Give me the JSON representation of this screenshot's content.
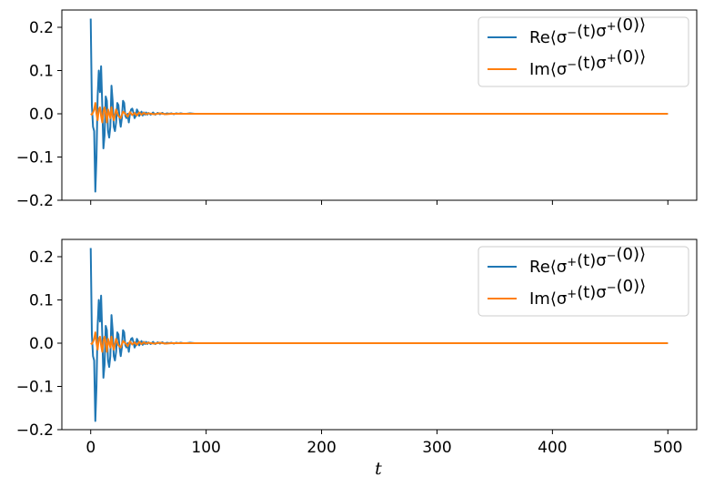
{
  "chart_data": [
    {
      "type": "line",
      "xlabel": "",
      "ylabel": "",
      "xlim": [
        -25,
        525
      ],
      "ylim": [
        -0.2,
        0.24
      ],
      "xticks": [
        0,
        100,
        200,
        300,
        400,
        500
      ],
      "yticks": [
        -0.2,
        -0.1,
        0.0,
        0.1,
        0.2
      ],
      "ytick_labels": [
        "−0.2",
        "−0.1",
        "0.0",
        "0.1",
        "0.2"
      ],
      "show_xtick_labels": false,
      "legend_position": "top-right",
      "series": [
        {
          "name": "Re⟨σ⁻(t)σ⁺(0)⟩",
          "color": "#1f77b4",
          "x": [
            0,
            1,
            2,
            3,
            4,
            5,
            6,
            7,
            8,
            9,
            10,
            11,
            12,
            13,
            14,
            15,
            16,
            17,
            18,
            19,
            20,
            21,
            22,
            23,
            24,
            25,
            26,
            27,
            28,
            29,
            30,
            31,
            32,
            33,
            34,
            35,
            36,
            37,
            38,
            39,
            40,
            41,
            42,
            43,
            44,
            45,
            46,
            47,
            48,
            49,
            50,
            52,
            54,
            56,
            58,
            60,
            62,
            64,
            66,
            68,
            70,
            72,
            74,
            76,
            78,
            80,
            83,
            86,
            90,
            95,
            100,
            500
          ],
          "y": [
            0.22,
            0.02,
            -0.03,
            -0.04,
            -0.18,
            -0.1,
            0.04,
            0.1,
            0.05,
            0.11,
            0.02,
            -0.08,
            -0.05,
            0.04,
            0.03,
            -0.04,
            -0.055,
            -0.03,
            0.065,
            0.03,
            -0.03,
            -0.04,
            -0.02,
            0.025,
            0.02,
            -0.01,
            -0.03,
            -0.01,
            0.03,
            0.025,
            -0.005,
            -0.01,
            0.0,
            -0.02,
            0.0,
            0.01,
            0.012,
            0.003,
            -0.01,
            -0.005,
            0.01,
            0.005,
            -0.005,
            0.0,
            0.005,
            -0.004,
            0.003,
            -0.002,
            0.003,
            -0.002,
            0.002,
            -0.002,
            0.003,
            -0.002,
            0.002,
            -0.001,
            0.002,
            -0.001,
            0.001,
            0.0,
            0.001,
            -0.001,
            0.001,
            0.0,
            0.001,
            0.0,
            0.0,
            0.001,
            0.0,
            0.0,
            0.0,
            0.0
          ]
        },
        {
          "name": "Im⟨σ⁻(t)σ⁺(0)⟩",
          "color": "#ff7f0e",
          "x": [
            0,
            1,
            2,
            3,
            4,
            5,
            6,
            7,
            8,
            9,
            10,
            11,
            12,
            13,
            14,
            15,
            16,
            17,
            18,
            19,
            20,
            22,
            24,
            26,
            28,
            30,
            32,
            34,
            36,
            38,
            40,
            42,
            44,
            46,
            48,
            50,
            55,
            60,
            65,
            70,
            75,
            80,
            90,
            100,
            500
          ],
          "y": [
            0.0,
            -0.002,
            0.003,
            0.01,
            0.025,
            0.0,
            -0.015,
            0.01,
            0.015,
            -0.005,
            -0.02,
            0.005,
            0.015,
            0.0,
            -0.02,
            0.01,
            0.0,
            -0.01,
            0.015,
            -0.005,
            -0.015,
            0.01,
            -0.005,
            -0.01,
            0.005,
            0.0,
            -0.007,
            0.004,
            -0.003,
            0.002,
            -0.004,
            0.003,
            -0.002,
            0.002,
            -0.001,
            0.001,
            -0.001,
            0.001,
            -0.001,
            0.0,
            0.0,
            0.0,
            0.0,
            0.0,
            0.0
          ]
        }
      ]
    },
    {
      "type": "line",
      "xlabel": "t",
      "ylabel": "",
      "xlim": [
        -25,
        525
      ],
      "ylim": [
        -0.2,
        0.24
      ],
      "xticks": [
        0,
        100,
        200,
        300,
        400,
        500
      ],
      "xtick_labels": [
        "0",
        "100",
        "200",
        "300",
        "400",
        "500"
      ],
      "yticks": [
        -0.2,
        -0.1,
        0.0,
        0.1,
        0.2
      ],
      "ytick_labels": [
        "−0.2",
        "−0.1",
        "0.0",
        "0.1",
        "0.2"
      ],
      "show_xtick_labels": true,
      "legend_position": "top-right",
      "series": [
        {
          "name": "Re⟨σ⁺(t)σ⁻(0)⟩",
          "color": "#1f77b4",
          "x": [
            0,
            1,
            2,
            3,
            4,
            5,
            6,
            7,
            8,
            9,
            10,
            11,
            12,
            13,
            14,
            15,
            16,
            17,
            18,
            19,
            20,
            21,
            22,
            23,
            24,
            25,
            26,
            27,
            28,
            29,
            30,
            31,
            32,
            33,
            34,
            35,
            36,
            37,
            38,
            39,
            40,
            41,
            42,
            43,
            44,
            45,
            46,
            47,
            48,
            49,
            50,
            52,
            54,
            56,
            58,
            60,
            62,
            64,
            66,
            68,
            70,
            72,
            74,
            76,
            78,
            80,
            83,
            86,
            90,
            95,
            100,
            500
          ],
          "y": [
            0.22,
            0.02,
            -0.03,
            -0.04,
            -0.18,
            -0.1,
            0.04,
            0.1,
            0.05,
            0.11,
            0.02,
            -0.08,
            -0.05,
            0.04,
            0.03,
            -0.04,
            -0.055,
            -0.03,
            0.065,
            0.03,
            -0.03,
            -0.04,
            -0.02,
            0.025,
            0.02,
            -0.01,
            -0.03,
            -0.01,
            0.03,
            0.025,
            -0.005,
            -0.01,
            0.0,
            -0.02,
            0.0,
            0.01,
            0.012,
            0.003,
            -0.01,
            -0.005,
            0.01,
            0.005,
            -0.005,
            0.0,
            0.005,
            -0.004,
            0.003,
            -0.002,
            0.003,
            -0.002,
            0.002,
            -0.002,
            0.003,
            -0.002,
            0.002,
            -0.001,
            0.002,
            -0.001,
            0.001,
            0.0,
            0.001,
            -0.001,
            0.001,
            0.0,
            0.001,
            0.0,
            0.0,
            0.001,
            0.0,
            0.0,
            0.0,
            0.0
          ]
        },
        {
          "name": "Im⟨σ⁺(t)σ⁻(0)⟩",
          "color": "#ff7f0e",
          "x": [
            0,
            1,
            2,
            3,
            4,
            5,
            6,
            7,
            8,
            9,
            10,
            11,
            12,
            13,
            14,
            15,
            16,
            17,
            18,
            19,
            20,
            22,
            24,
            26,
            28,
            30,
            32,
            34,
            36,
            38,
            40,
            42,
            44,
            46,
            48,
            50,
            55,
            60,
            65,
            70,
            75,
            80,
            90,
            100,
            500
          ],
          "y": [
            0.0,
            -0.002,
            0.003,
            0.01,
            0.025,
            0.0,
            -0.015,
            0.01,
            0.015,
            -0.005,
            -0.02,
            0.005,
            0.015,
            0.0,
            -0.02,
            0.01,
            0.0,
            -0.01,
            0.015,
            -0.005,
            -0.015,
            0.01,
            -0.005,
            -0.01,
            0.005,
            0.0,
            -0.007,
            0.004,
            -0.003,
            0.002,
            -0.004,
            0.003,
            -0.002,
            0.002,
            -0.001,
            0.001,
            -0.001,
            0.001,
            -0.001,
            0.0,
            0.0,
            0.0,
            0.0,
            0.0,
            0.0
          ]
        }
      ]
    }
  ]
}
